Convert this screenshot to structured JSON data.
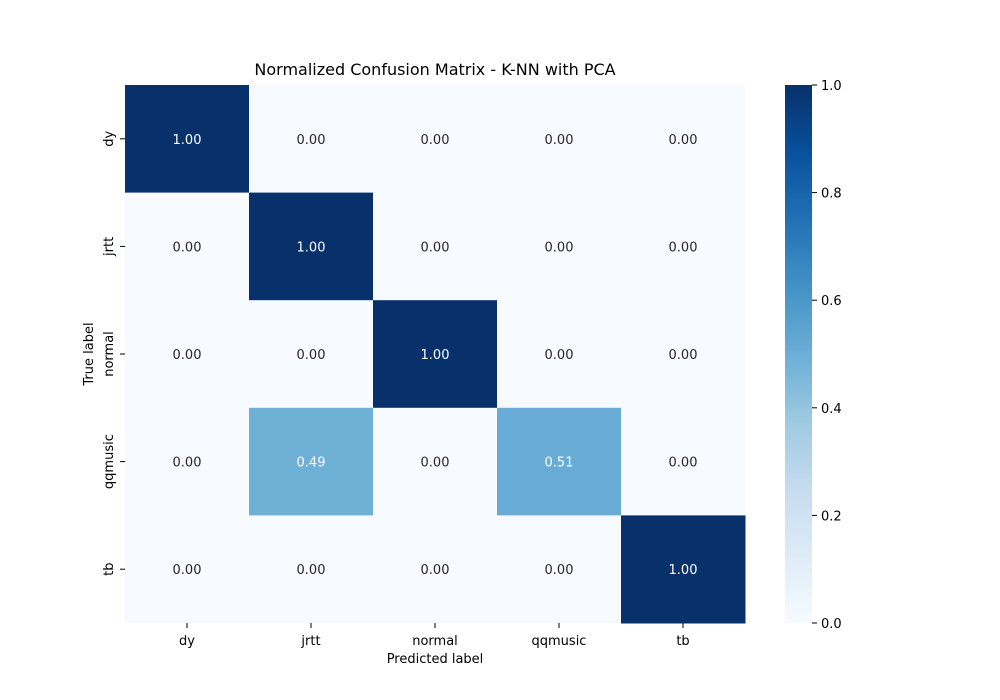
{
  "chart_data": {
    "type": "heatmap",
    "title": "Normalized Confusion Matrix - K-NN with PCA",
    "xlabel": "Predicted label",
    "ylabel": "True label",
    "x_categories": [
      "dy",
      "jrtt",
      "normal",
      "qqmusic",
      "tb"
    ],
    "y_categories": [
      "dy",
      "jrtt",
      "normal",
      "qqmusic",
      "tb"
    ],
    "values": [
      [
        1.0,
        0.0,
        0.0,
        0.0,
        0.0
      ],
      [
        0.0,
        1.0,
        0.0,
        0.0,
        0.0
      ],
      [
        0.0,
        0.0,
        1.0,
        0.0,
        0.0
      ],
      [
        0.0,
        0.49,
        0.0,
        0.51,
        0.0
      ],
      [
        0.0,
        0.0,
        0.0,
        0.0,
        1.0
      ]
    ],
    "value_labels": [
      [
        "1.00",
        "0.00",
        "0.00",
        "0.00",
        "0.00"
      ],
      [
        "0.00",
        "1.00",
        "0.00",
        "0.00",
        "0.00"
      ],
      [
        "0.00",
        "0.00",
        "1.00",
        "0.00",
        "0.00"
      ],
      [
        "0.00",
        "0.49",
        "0.00",
        "0.51",
        "0.00"
      ],
      [
        "0.00",
        "0.00",
        "0.00",
        "0.00",
        "1.00"
      ]
    ],
    "colormap": "Blues",
    "vmin": 0.0,
    "vmax": 1.0,
    "colorbar": {
      "ticks": [
        0.0,
        0.2,
        0.4,
        0.6,
        0.8,
        1.0
      ],
      "tick_labels": [
        "0.0",
        "0.2",
        "0.4",
        "0.6",
        "0.8",
        "1.0"
      ]
    },
    "annotation_colors": {
      "dark_bg": "#ffffff",
      "light_bg": "#262626"
    },
    "grid": false
  }
}
